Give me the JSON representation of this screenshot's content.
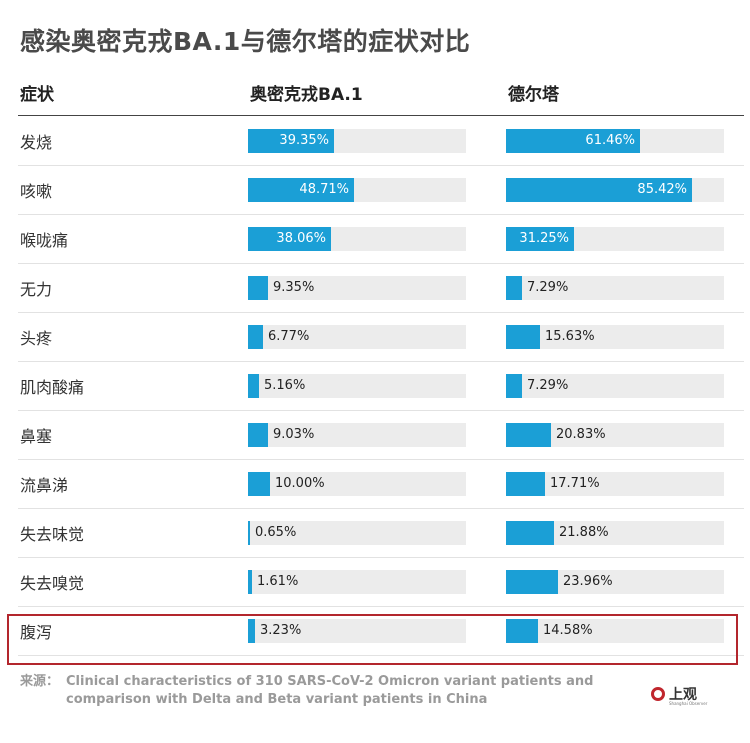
{
  "title": "感染奥密克戎BA.1与德尔塔的症状对比",
  "headers": {
    "symptom": "症状",
    "omicron": "奥密克戎BA.1",
    "delta": "德尔塔"
  },
  "colors": {
    "bar": "#1b9fd6",
    "track": "#ececec",
    "highlight": "#b3262d"
  },
  "chart_data": {
    "type": "bar",
    "title": "感染奥密克戎BA.1与德尔塔的症状对比",
    "categories": [
      "发烧",
      "咳嗽",
      "喉咙痛",
      "无力",
      "头疼",
      "肌肉酸痛",
      "鼻塞",
      "流鼻涕",
      "失去味觉",
      "失去嗅觉",
      "腹泻"
    ],
    "series": [
      {
        "name": "奥密克戎BA.1",
        "values": [
          39.35,
          48.71,
          38.06,
          9.35,
          6.77,
          5.16,
          9.03,
          10.0,
          0.65,
          1.61,
          3.23
        ],
        "labels": [
          "39.35%",
          "48.71%",
          "38.06%",
          "9.35%",
          "6.77%",
          "5.16%",
          "9.03%",
          "10.00%",
          "0.65%",
          "1.61%",
          "3.23%"
        ]
      },
      {
        "name": "德尔塔",
        "values": [
          61.46,
          85.42,
          31.25,
          7.29,
          15.63,
          7.29,
          20.83,
          17.71,
          21.88,
          23.96,
          14.58
        ],
        "labels": [
          "61.46%",
          "85.42%",
          "31.25%",
          "7.29%",
          "15.63%",
          "7.29%",
          "20.83%",
          "17.71%",
          "21.88%",
          "23.96%",
          "14.58%"
        ]
      }
    ],
    "xlim": [
      0,
      100
    ],
    "highlighted_category": "腹泻"
  },
  "source": {
    "label": "来源：",
    "text": "Clinical characteristics of 310 SARS-CoV-2 Omicron variant patients and comparison with Delta and Beta variant patients in China"
  },
  "logo": {
    "text": "上观",
    "sub": "Shanghai Observer"
  }
}
